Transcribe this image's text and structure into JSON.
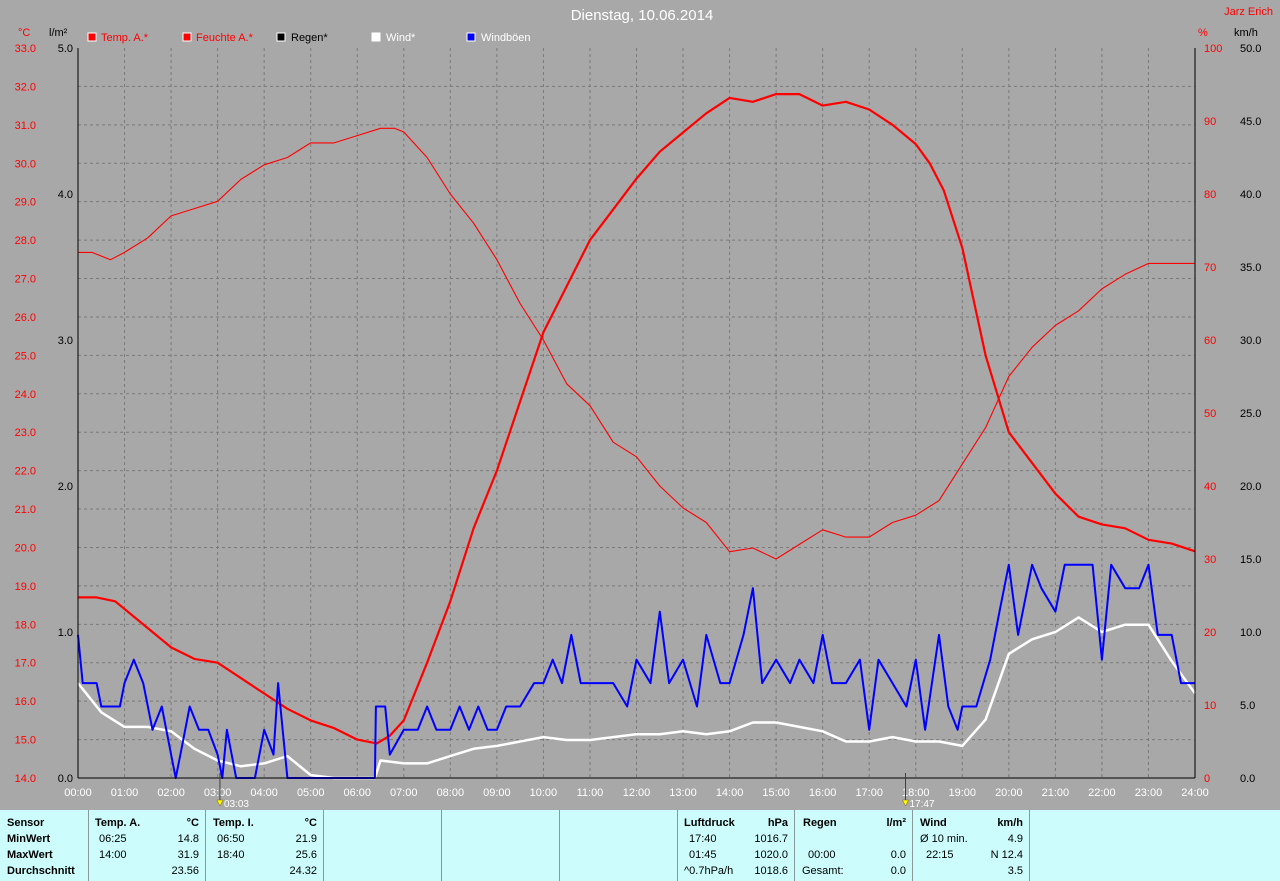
{
  "title": "Dienstag, 10.06.2014",
  "author": "Jarz Erich",
  "units": {
    "temp": "°C",
    "rain": "l/m²",
    "hum": "%",
    "wind": "km/h"
  },
  "legend": [
    {
      "label": "Temp. A.*",
      "color": "#ff0000"
    },
    {
      "label": "Feuchte A.*",
      "color": "#ff0000"
    },
    {
      "label": "Regen*",
      "color": "#000000"
    },
    {
      "label": "Wind*",
      "color": "#ffffff"
    },
    {
      "label": "Windböen",
      "color": "#0000ff"
    }
  ],
  "markers": [
    {
      "label": "03:03",
      "t": 3.05
    },
    {
      "label": "17:47",
      "t": 17.78
    }
  ],
  "chart_data": {
    "type": "line",
    "x_unit": "hour of day",
    "x_ticks": [
      "00:00",
      "01:00",
      "02:00",
      "03:00",
      "04:00",
      "05:00",
      "06:00",
      "07:00",
      "08:00",
      "09:00",
      "10:00",
      "11:00",
      "12:00",
      "13:00",
      "14:00",
      "15:00",
      "16:00",
      "17:00",
      "18:00",
      "19:00",
      "20:00",
      "21:00",
      "22:00",
      "23:00",
      "24:00"
    ],
    "xlim": [
      0,
      24
    ],
    "axes": {
      "temp": {
        "ylim": [
          14,
          33
        ],
        "ticks": [
          "14.0",
          "15.0",
          "16.0",
          "17.0",
          "18.0",
          "19.0",
          "20.0",
          "21.0",
          "22.0",
          "23.0",
          "24.0",
          "25.0",
          "26.0",
          "27.0",
          "28.0",
          "29.0",
          "30.0",
          "31.0",
          "32.0",
          "33.0"
        ]
      },
      "rain": {
        "ylim": [
          0,
          5
        ],
        "ticks": [
          "0.0",
          "1.0",
          "2.0",
          "3.0",
          "4.0",
          "5.0"
        ]
      },
      "hum": {
        "ylim": [
          0,
          100
        ],
        "ticks": [
          "0",
          "10",
          "20",
          "30",
          "40",
          "50",
          "60",
          "70",
          "80",
          "90",
          "100"
        ]
      },
      "wind": {
        "ylim": [
          0,
          50
        ],
        "ticks": [
          "0.0",
          "5.0",
          "10.0",
          "15.0",
          "20.0",
          "25.0",
          "30.0",
          "35.0",
          "40.0",
          "45.0",
          "50.0"
        ]
      }
    },
    "grid": true,
    "series": [
      {
        "name": "Temp. A.*",
        "axis": "temp",
        "color": "#ff0000",
        "width": 2.2,
        "points": [
          [
            0,
            18.7
          ],
          [
            0.4,
            18.7
          ],
          [
            0.8,
            18.6
          ],
          [
            1.2,
            18.2
          ],
          [
            1.6,
            17.8
          ],
          [
            2.0,
            17.4
          ],
          [
            2.5,
            17.1
          ],
          [
            3.0,
            17.0
          ],
          [
            3.5,
            16.6
          ],
          [
            4.0,
            16.2
          ],
          [
            4.5,
            15.8
          ],
          [
            5.0,
            15.5
          ],
          [
            5.5,
            15.3
          ],
          [
            6.0,
            15.0
          ],
          [
            6.42,
            14.9
          ],
          [
            6.7,
            15.1
          ],
          [
            7.0,
            15.5
          ],
          [
            7.5,
            17.0
          ],
          [
            8.0,
            18.6
          ],
          [
            8.5,
            20.5
          ],
          [
            9.0,
            22.0
          ],
          [
            9.5,
            23.8
          ],
          [
            10.0,
            25.6
          ],
          [
            10.5,
            26.8
          ],
          [
            11.0,
            28.0
          ],
          [
            11.5,
            28.8
          ],
          [
            12.0,
            29.6
          ],
          [
            12.5,
            30.3
          ],
          [
            13.0,
            30.8
          ],
          [
            13.5,
            31.3
          ],
          [
            14.0,
            31.7
          ],
          [
            14.5,
            31.6
          ],
          [
            15.0,
            31.8
          ],
          [
            15.5,
            31.8
          ],
          [
            16.0,
            31.5
          ],
          [
            16.5,
            31.6
          ],
          [
            17.0,
            31.4
          ],
          [
            17.5,
            31.0
          ],
          [
            18.0,
            30.5
          ],
          [
            18.3,
            30.0
          ],
          [
            18.6,
            29.3
          ],
          [
            19.0,
            27.8
          ],
          [
            19.5,
            25.0
          ],
          [
            20.0,
            23.0
          ],
          [
            20.5,
            22.2
          ],
          [
            21.0,
            21.4
          ],
          [
            21.5,
            20.8
          ],
          [
            22.0,
            20.6
          ],
          [
            22.5,
            20.5
          ],
          [
            23.0,
            20.2
          ],
          [
            23.5,
            20.1
          ],
          [
            24.0,
            19.9
          ]
        ]
      },
      {
        "name": "Feuchte A.*",
        "axis": "hum",
        "color": "#ff0000",
        "width": 1.1,
        "points": [
          [
            0,
            72
          ],
          [
            0.3,
            72
          ],
          [
            0.7,
            71
          ],
          [
            1.0,
            72
          ],
          [
            1.5,
            74
          ],
          [
            2.0,
            77
          ],
          [
            2.5,
            78
          ],
          [
            3.0,
            79
          ],
          [
            3.5,
            82
          ],
          [
            4.0,
            84
          ],
          [
            4.5,
            85
          ],
          [
            5.0,
            87
          ],
          [
            5.5,
            87
          ],
          [
            6.0,
            88
          ],
          [
            6.5,
            89
          ],
          [
            6.8,
            89
          ],
          [
            7.0,
            88.5
          ],
          [
            7.5,
            85
          ],
          [
            8.0,
            80
          ],
          [
            8.5,
            76
          ],
          [
            9.0,
            71
          ],
          [
            9.5,
            65
          ],
          [
            10.0,
            60
          ],
          [
            10.5,
            54
          ],
          [
            11.0,
            51
          ],
          [
            11.5,
            46
          ],
          [
            12.0,
            44
          ],
          [
            12.5,
            40
          ],
          [
            13.0,
            37
          ],
          [
            13.5,
            35
          ],
          [
            14.0,
            31
          ],
          [
            14.5,
            31.5
          ],
          [
            15.0,
            30
          ],
          [
            15.5,
            32
          ],
          [
            16.0,
            34
          ],
          [
            16.5,
            33
          ],
          [
            17.0,
            33
          ],
          [
            17.5,
            35
          ],
          [
            18.0,
            36
          ],
          [
            18.5,
            38
          ],
          [
            19.0,
            43
          ],
          [
            19.5,
            48
          ],
          [
            20.0,
            55
          ],
          [
            20.5,
            59
          ],
          [
            21.0,
            62
          ],
          [
            21.5,
            64
          ],
          [
            22.0,
            67
          ],
          [
            22.5,
            69
          ],
          [
            23.0,
            70.5
          ],
          [
            23.5,
            70.5
          ],
          [
            24.0,
            70.5
          ]
        ]
      },
      {
        "name": "Wind*",
        "axis": "wind",
        "color": "#ffffff",
        "width": 2.5,
        "points": [
          [
            0,
            6.5
          ],
          [
            0.5,
            4.5
          ],
          [
            1.0,
            3.5
          ],
          [
            1.5,
            3.5
          ],
          [
            2.0,
            3.2
          ],
          [
            2.5,
            2.0
          ],
          [
            3.0,
            1.2
          ],
          [
            3.5,
            0.8
          ],
          [
            4.0,
            1.0
          ],
          [
            4.5,
            1.5
          ],
          [
            5.0,
            0.2
          ],
          [
            5.5,
            0
          ],
          [
            6.0,
            0
          ],
          [
            6.38,
            0
          ],
          [
            6.5,
            1.2
          ],
          [
            7.0,
            1.0
          ],
          [
            7.5,
            1.0
          ],
          [
            8.0,
            1.5
          ],
          [
            8.5,
            2.0
          ],
          [
            9.0,
            2.2
          ],
          [
            9.5,
            2.5
          ],
          [
            10.0,
            2.8
          ],
          [
            10.5,
            2.6
          ],
          [
            11.0,
            2.6
          ],
          [
            11.5,
            2.8
          ],
          [
            12.0,
            3.0
          ],
          [
            12.5,
            3.0
          ],
          [
            13.0,
            3.2
          ],
          [
            13.5,
            3.0
          ],
          [
            14.0,
            3.2
          ],
          [
            14.5,
            3.8
          ],
          [
            15.0,
            3.8
          ],
          [
            15.5,
            3.5
          ],
          [
            16.0,
            3.2
          ],
          [
            16.5,
            2.5
          ],
          [
            17.0,
            2.5
          ],
          [
            17.5,
            2.8
          ],
          [
            18.0,
            2.5
          ],
          [
            18.5,
            2.5
          ],
          [
            19.0,
            2.2
          ],
          [
            19.5,
            4.0
          ],
          [
            20.0,
            8.5
          ],
          [
            20.5,
            9.5
          ],
          [
            21.0,
            10.0
          ],
          [
            21.5,
            11.0
          ],
          [
            22.0,
            10.0
          ],
          [
            22.5,
            10.5
          ],
          [
            23.0,
            10.5
          ],
          [
            23.5,
            8.0
          ],
          [
            24.0,
            5.8
          ]
        ]
      },
      {
        "name": "Windböen",
        "axis": "wind",
        "color": "#0000ff",
        "width": 2.0,
        "points": [
          [
            0,
            9.8
          ],
          [
            0.1,
            6.5
          ],
          [
            0.4,
            6.5
          ],
          [
            0.5,
            4.9
          ],
          [
            0.7,
            4.9
          ],
          [
            0.9,
            4.9
          ],
          [
            1.0,
            6.5
          ],
          [
            1.2,
            8.1
          ],
          [
            1.4,
            6.5
          ],
          [
            1.6,
            3.3
          ],
          [
            1.8,
            4.9
          ],
          [
            2.0,
            1.6
          ],
          [
            2.1,
            0
          ],
          [
            2.2,
            1.6
          ],
          [
            2.4,
            4.9
          ],
          [
            2.6,
            3.3
          ],
          [
            2.8,
            3.3
          ],
          [
            3.0,
            1.6
          ],
          [
            3.1,
            0
          ],
          [
            3.2,
            3.3
          ],
          [
            3.4,
            0
          ],
          [
            3.8,
            0
          ],
          [
            4.0,
            3.3
          ],
          [
            4.2,
            1.6
          ],
          [
            4.3,
            6.5
          ],
          [
            4.5,
            0
          ],
          [
            5.0,
            0
          ],
          [
            6.0,
            0
          ],
          [
            6.38,
            0
          ],
          [
            6.4,
            4.9
          ],
          [
            6.6,
            4.9
          ],
          [
            6.7,
            1.6
          ],
          [
            7.0,
            3.3
          ],
          [
            7.3,
            3.3
          ],
          [
            7.5,
            4.9
          ],
          [
            7.7,
            3.3
          ],
          [
            8.0,
            3.3
          ],
          [
            8.2,
            4.9
          ],
          [
            8.4,
            3.3
          ],
          [
            8.6,
            4.9
          ],
          [
            8.8,
            3.3
          ],
          [
            9.0,
            3.3
          ],
          [
            9.2,
            4.9
          ],
          [
            9.5,
            4.9
          ],
          [
            9.8,
            6.5
          ],
          [
            10.0,
            6.5
          ],
          [
            10.2,
            8.1
          ],
          [
            10.4,
            6.5
          ],
          [
            10.6,
            9.8
          ],
          [
            10.8,
            6.5
          ],
          [
            11.0,
            6.5
          ],
          [
            11.2,
            6.5
          ],
          [
            11.5,
            6.5
          ],
          [
            11.8,
            4.9
          ],
          [
            12.0,
            8.1
          ],
          [
            12.3,
            6.5
          ],
          [
            12.5,
            11.4
          ],
          [
            12.7,
            6.5
          ],
          [
            13.0,
            8.1
          ],
          [
            13.3,
            4.9
          ],
          [
            13.5,
            9.8
          ],
          [
            13.8,
            6.5
          ],
          [
            14.0,
            6.5
          ],
          [
            14.3,
            9.8
          ],
          [
            14.5,
            13.0
          ],
          [
            14.7,
            6.5
          ],
          [
            15.0,
            8.1
          ],
          [
            15.3,
            6.5
          ],
          [
            15.5,
            8.1
          ],
          [
            15.8,
            6.5
          ],
          [
            16.0,
            9.8
          ],
          [
            16.2,
            6.5
          ],
          [
            16.5,
            6.5
          ],
          [
            16.8,
            8.1
          ],
          [
            17.0,
            3.3
          ],
          [
            17.2,
            8.1
          ],
          [
            17.5,
            6.5
          ],
          [
            17.8,
            4.9
          ],
          [
            18.0,
            8.1
          ],
          [
            18.2,
            3.3
          ],
          [
            18.5,
            9.8
          ],
          [
            18.7,
            4.9
          ],
          [
            18.9,
            3.3
          ],
          [
            19.0,
            4.9
          ],
          [
            19.3,
            4.9
          ],
          [
            19.6,
            8.1
          ],
          [
            19.8,
            11.4
          ],
          [
            20.0,
            14.6
          ],
          [
            20.2,
            9.8
          ],
          [
            20.5,
            14.6
          ],
          [
            20.7,
            13.0
          ],
          [
            21.0,
            11.4
          ],
          [
            21.2,
            14.6
          ],
          [
            21.5,
            14.6
          ],
          [
            21.8,
            14.6
          ],
          [
            22.0,
            8.1
          ],
          [
            22.2,
            14.6
          ],
          [
            22.5,
            13.0
          ],
          [
            22.8,
            13.0
          ],
          [
            23.0,
            14.6
          ],
          [
            23.2,
            9.8
          ],
          [
            23.5,
            9.8
          ],
          [
            23.7,
            6.5
          ],
          [
            24.0,
            6.5
          ]
        ]
      }
    ]
  },
  "stats": {
    "sensor": {
      "header": "Sensor",
      "min": "MinWert",
      "max": "MaxWert",
      "avg": "Durchschnitt"
    },
    "tempA": {
      "header": "Temp. A.",
      "unit": "°C",
      "min_time": "06:25",
      "min_val": "14.8",
      "max_time": "14:00",
      "max_val": "31.9",
      "avg": "23.56"
    },
    "tempI": {
      "header": "Temp. I.",
      "unit": "°C",
      "min_time": "06:50",
      "min_val": "21.9",
      "max_time": "18:40",
      "max_val": "25.6",
      "avg": "24.32"
    },
    "pressure": {
      "header": "Luftdruck",
      "unit": "hPa",
      "min_time": "17:40",
      "min_val": "1016.7",
      "max_time": "01:45",
      "max_val": "1020.0",
      "trend": "^0.7hPa/h",
      "avg": "1018.6"
    },
    "rain": {
      "header": "Regen",
      "unit": "l/m²",
      "time": "00:00",
      "val": "0.0",
      "total_label": "Gesamt:",
      "total": "0.0"
    },
    "wind": {
      "header": "Wind",
      "unit": "km/h",
      "avg10_label": "Ø 10 min.",
      "avg10": "4.9",
      "max_time": "22:15",
      "max_val": "N 12.4",
      "avg": "3.5"
    }
  }
}
